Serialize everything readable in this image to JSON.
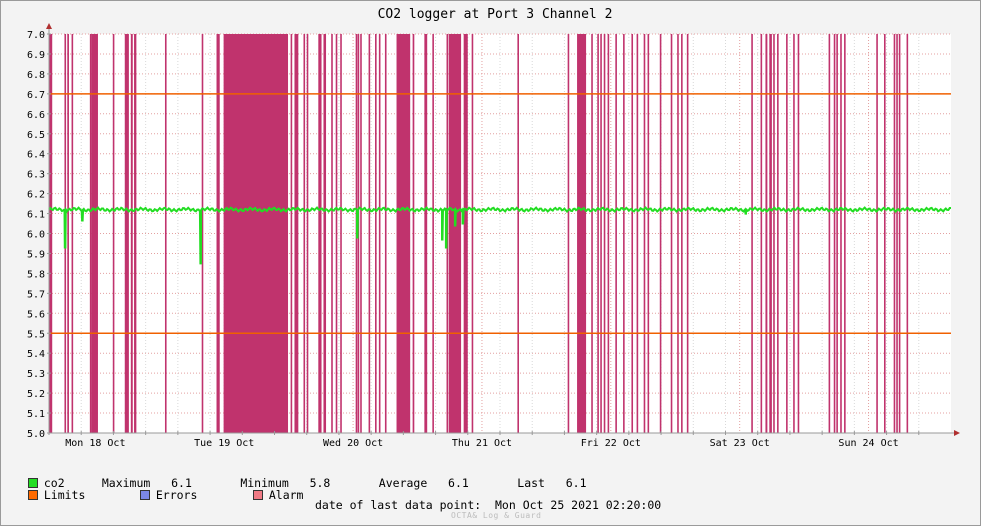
{
  "chart_data": {
    "type": "line",
    "title": "CO2 logger at Port 3 Channel 2",
    "ylim": [
      5.0,
      7.0
    ],
    "yticks": [
      "5.0",
      "5.1",
      "5.2",
      "5.3",
      "5.4",
      "5.5",
      "5.6",
      "5.7",
      "5.8",
      "5.9",
      "6.0",
      "6.1",
      "6.2",
      "6.3",
      "6.4",
      "6.5",
      "6.6",
      "6.7",
      "6.8",
      "6.9",
      "7.0"
    ],
    "xlim": [
      0,
      7
    ],
    "x_unit": "days",
    "xticks": [
      {
        "label": "Mon 18 Oct",
        "x": 0.36
      },
      {
        "label": "Tue 19 Oct",
        "x": 1.36
      },
      {
        "label": "Wed 20 Oct",
        "x": 2.36
      },
      {
        "label": "Thu 21 Oct",
        "x": 3.36
      },
      {
        "label": "Fri 22 Oct",
        "x": 4.36
      },
      {
        "label": "Sat 23 Oct",
        "x": 5.36
      },
      {
        "label": "Sun 24 Oct",
        "x": 6.36
      }
    ],
    "grid": true,
    "limits": [
      5.5,
      6.7
    ],
    "series": [
      {
        "name": "co2",
        "color": "#22dd22",
        "baseline": 6.12,
        "dips": [
          {
            "x": 0.123,
            "y": 5.93
          },
          {
            "x": 0.257,
            "y": 6.06
          },
          {
            "x": 1.175,
            "y": 5.85
          },
          {
            "x": 2.39,
            "y": 5.98
          },
          {
            "x": 3.05,
            "y": 5.97
          },
          {
            "x": 3.08,
            "y": 5.93
          },
          {
            "x": 3.15,
            "y": 6.04
          },
          {
            "x": 3.21,
            "y": 6.05
          },
          {
            "x": 5.405,
            "y": 6.1
          }
        ]
      }
    ],
    "alarm_bands": [
      [
        0.0,
        0.025
      ],
      [
        0.12,
        0.13
      ],
      [
        0.142,
        0.155
      ],
      [
        0.175,
        0.18
      ],
      [
        0.317,
        0.322
      ],
      [
        0.33,
        0.38
      ],
      [
        0.495,
        0.503
      ],
      [
        0.588,
        0.62
      ],
      [
        0.635,
        0.65
      ],
      [
        0.66,
        0.678
      ],
      [
        0.9,
        0.91
      ],
      [
        1.185,
        1.19
      ],
      [
        1.3,
        1.325
      ],
      [
        1.355,
        1.855
      ],
      [
        1.875,
        1.878
      ],
      [
        1.905,
        1.935
      ],
      [
        1.975,
        1.983
      ],
      [
        2.0,
        2.005
      ],
      [
        2.09,
        2.115
      ],
      [
        2.13,
        2.15
      ],
      [
        2.19,
        2.193
      ],
      [
        2.225,
        2.228
      ],
      [
        2.26,
        2.265
      ],
      [
        2.38,
        2.384
      ],
      [
        2.395,
        2.4
      ],
      [
        2.415,
        2.418
      ],
      [
        2.48,
        2.483
      ],
      [
        2.53,
        2.535
      ],
      [
        2.56,
        2.563
      ],
      [
        2.607,
        2.61
      ],
      [
        2.697,
        2.803
      ],
      [
        2.822,
        2.835
      ],
      [
        2.913,
        2.935
      ],
      [
        2.975,
        2.978
      ],
      [
        3.085,
        3.09
      ],
      [
        3.102,
        3.198
      ],
      [
        3.218,
        3.25
      ],
      [
        3.28,
        3.285
      ],
      [
        3.635,
        3.638
      ],
      [
        4.025,
        4.033
      ],
      [
        4.098,
        4.168
      ],
      [
        4.208,
        4.217
      ],
      [
        4.255,
        4.262
      ],
      [
        4.278,
        4.285
      ],
      [
        4.305,
        4.31
      ],
      [
        4.335,
        4.338
      ],
      [
        4.395,
        4.405
      ],
      [
        4.455,
        4.46
      ],
      [
        4.52,
        4.525
      ],
      [
        4.56,
        4.565
      ],
      [
        4.615,
        4.62
      ],
      [
        4.645,
        4.65
      ],
      [
        4.74,
        4.746
      ],
      [
        4.825,
        4.83
      ],
      [
        4.875,
        4.88
      ],
      [
        4.905,
        4.91
      ],
      [
        4.95,
        4.955
      ],
      [
        5.45,
        5.457
      ],
      [
        5.522,
        5.528
      ],
      [
        5.56,
        5.575
      ],
      [
        5.59,
        5.61
      ],
      [
        5.62,
        5.625
      ],
      [
        5.65,
        5.66
      ],
      [
        5.72,
        5.725
      ],
      [
        5.775,
        5.78
      ],
      [
        5.81,
        5.815
      ],
      [
        6.05,
        6.055
      ],
      [
        6.09,
        6.095
      ],
      [
        6.11,
        6.12
      ],
      [
        6.14,
        6.145
      ],
      [
        6.17,
        6.18
      ],
      [
        6.42,
        6.425
      ],
      [
        6.48,
        6.485
      ],
      [
        6.555,
        6.56
      ],
      [
        6.575,
        6.582
      ],
      [
        6.595,
        6.605
      ],
      [
        6.655,
        6.66
      ]
    ],
    "legend": {
      "co2": {
        "label": "co2",
        "color": "#22dd22",
        "stats": "Maximum   6.1       Minimum   5.8       Average   6.1       Last   6.1"
      },
      "limits": {
        "label": "Limits",
        "color": "#ff6a00"
      },
      "errors": {
        "label": "Errors",
        "color": "#7b87e6"
      },
      "alarm": {
        "label": "Alarm",
        "color": "#f07a85"
      }
    },
    "colors": {
      "alarm_fill": "#c0336d",
      "limit_line": "#f06000",
      "grid_major": "#e4a0a0",
      "axis": "#999999",
      "arrow": "#b03030",
      "plot_bg": "#ffffff"
    }
  },
  "footer": {
    "last_point": "date of last data point:  Mon Oct 25 2021 02:20:00",
    "credit": "OCTA& Log & Guard"
  }
}
